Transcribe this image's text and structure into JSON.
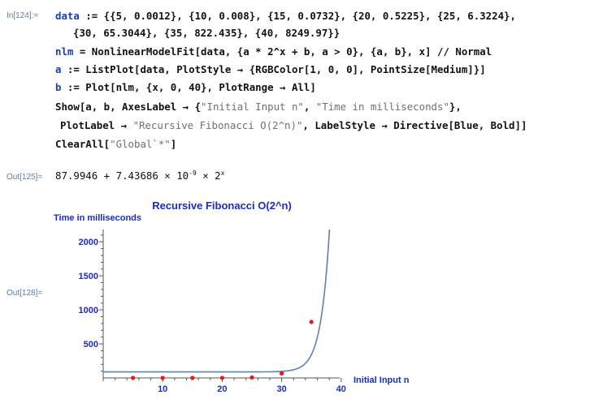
{
  "cells": {
    "in_label": "In[124]:=",
    "out125_label": "Out[125]=",
    "out128_label": "Out[128]="
  },
  "code": {
    "l1_kw": "data",
    "l1_rest": " := {{5, 0.0012}, {10, 0.008}, {15, 0.0732}, {20, 0.5225}, {25, 6.3224},",
    "l2": "{30, 65.3044}, {35, 822.435}, {40, 8249.97}}",
    "l3_kw": "nlm",
    "l3_rest": " = NonlinearModelFit[data, {a * 2^x + b, a > 0}, {a, b}, x] // Normal",
    "l4_kw": "a",
    "l4_rest": " := ListPlot[data, PlotStyle → {RGBColor[1, 0, 0], PointSize[Medium]}]",
    "l5_kw": "b",
    "l5_rest": " := Plot[nlm, {x, 0, 40}, PlotRange → All]",
    "l6_a": "Show[a, b, AxesLabel → {",
    "l6_s1": "\"Initial Input n\"",
    "l6_b": ", ",
    "l6_s2": "\"Time in milliseconds\"",
    "l6_c": "},",
    "l7_a": "PlotLabel → ",
    "l7_s1": "\"Recursive Fibonacci O(2^n)\"",
    "l7_b": ", LabelStyle → Directive[Blue, Bold]]",
    "l8_a": "ClearAll[",
    "l8_s1": "\"Global`*\"",
    "l8_b": "]"
  },
  "output": {
    "coef_b": "87.9946",
    "plus": " + ",
    "coef_a": "7.43686",
    "times": " × 10",
    "exp1": "-9",
    "times2": " × 2",
    "exp2": "x"
  },
  "chart_data": {
    "type": "scatter",
    "title": "Recursive Fibonacci O(2^n)",
    "xlabel": "Initial Input n",
    "ylabel": "Time in milliseconds",
    "xlim": [
      0,
      40
    ],
    "ylim": [
      0,
      2200
    ],
    "x_ticks": [
      10,
      20,
      30,
      40
    ],
    "y_ticks": [
      500,
      1000,
      1500,
      2000
    ],
    "points": [
      {
        "x": 5,
        "y": 0.0012
      },
      {
        "x": 10,
        "y": 0.008
      },
      {
        "x": 15,
        "y": 0.0732
      },
      {
        "x": 20,
        "y": 0.5225
      },
      {
        "x": 25,
        "y": 6.3224
      },
      {
        "x": 30,
        "y": 65.3044
      },
      {
        "x": 35,
        "y": 822.435
      }
    ],
    "fit": {
      "a": 7.43686e-09,
      "b": 87.9946
    },
    "point_color": "#e8181c",
    "curve_color": "#5e81b5",
    "label_color": "#1a2bc8",
    "grid": false
  }
}
